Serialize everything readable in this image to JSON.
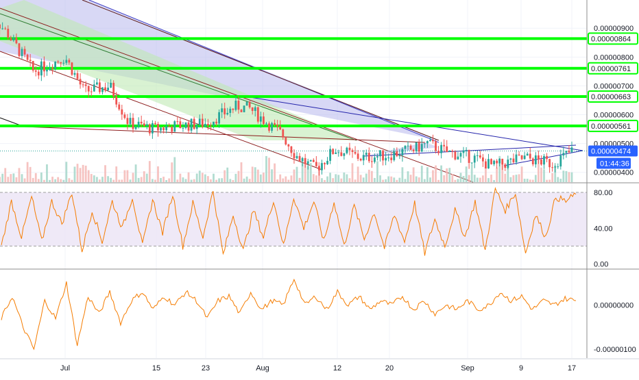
{
  "chart_data": [
    {
      "type": "candlestick",
      "panel": "price",
      "title": "",
      "xlabel": "",
      "ylabel": "",
      "ylim": [
        3.66e-06,
        9.98e-06
      ],
      "y_ticks": [
        "0.00000900",
        "0.00000800",
        "0.00000700",
        "0.00000600",
        "0.00000500",
        "0.00000400"
      ],
      "y_tick_values": [
        9e-06,
        8e-06,
        7e-06,
        6e-06,
        5e-06,
        4e-06
      ],
      "horizontal_levels": [
        {
          "value": 8.64e-06,
          "label": "0.00000864"
        },
        {
          "value": 7.61e-06,
          "label": "0.00000761"
        },
        {
          "value": 6.63e-06,
          "label": "0.00000663"
        },
        {
          "value": 5.61e-06,
          "label": "0.00000561"
        }
      ],
      "last_price": {
        "value": 4.74e-06,
        "label": "0.00000474"
      },
      "countdown": "01:44:36",
      "colors": {
        "up": "#26a69a",
        "down": "#ef5350",
        "level": "#00ff00",
        "last_price": "#2962ff"
      },
      "approx_close_path": [
        {
          "date": "Jun 19",
          "close": 9.6e-06
        },
        {
          "date": "Jun 22",
          "close": 8.8e-06
        },
        {
          "date": "Jun 26",
          "close": 7.5e-06
        },
        {
          "date": "Jul 1",
          "close": 8e-06
        },
        {
          "date": "Jul 4",
          "close": 6.8e-06
        },
        {
          "date": "Jul 8",
          "close": 7e-06
        },
        {
          "date": "Jul 11",
          "close": 5.7e-06
        },
        {
          "date": "Jul 15",
          "close": 5.5e-06
        },
        {
          "date": "Jul 18",
          "close": 5.6e-06
        },
        {
          "date": "Jul 23",
          "close": 5.7e-06
        },
        {
          "date": "Jul 28",
          "close": 6.3e-06
        },
        {
          "date": "Jul 30",
          "close": 6.2e-06
        },
        {
          "date": "Aug 4",
          "close": 5.3e-06
        },
        {
          "date": "Aug 6",
          "close": 4.6e-06
        },
        {
          "date": "Aug 9",
          "close": 4.1e-06
        },
        {
          "date": "Aug 12",
          "close": 4.8e-06
        },
        {
          "date": "Aug 16",
          "close": 4.5e-06
        },
        {
          "date": "Aug 20",
          "close": 4.6e-06
        },
        {
          "date": "Aug 24",
          "close": 4.8e-06
        },
        {
          "date": "Aug 26",
          "close": 5e-06
        },
        {
          "date": "Aug 29",
          "close": 4.7e-06
        },
        {
          "date": "Sep 2",
          "close": 4.5e-06
        },
        {
          "date": "Sep 5",
          "close": 4.2e-06
        },
        {
          "date": "Sep 8",
          "close": 4.4e-06
        },
        {
          "date": "Sep 10",
          "close": 4.5e-06
        },
        {
          "date": "Sep 14",
          "close": 4.3e-06
        },
        {
          "date": "Sep 17",
          "close": 4.74e-06
        }
      ]
    },
    {
      "type": "line",
      "panel": "rsi",
      "ylim": [
        -5,
        90
      ],
      "y_ticks": [
        "80.00",
        "40.00",
        "0.00"
      ],
      "y_tick_values": [
        80,
        40,
        0
      ],
      "band": [
        20,
        80
      ],
      "colors": {
        "line": "#f57c00",
        "band": "#d1c4e9"
      },
      "approx_values": [
        20,
        70,
        30,
        75,
        25,
        70,
        45,
        80,
        15,
        60,
        25,
        70,
        40,
        75,
        20,
        72,
        35,
        78,
        20,
        68,
        30,
        82,
        10,
        55,
        15,
        60,
        30,
        72,
        20,
        75,
        40,
        70,
        25,
        70,
        20,
        65,
        28,
        58,
        18,
        55,
        25,
        68,
        12,
        50,
        20,
        60,
        30,
        70,
        15,
        84,
        60,
        80,
        12,
        55,
        30,
        75,
        70,
        78
      ]
    },
    {
      "type": "line",
      "panel": "momentum",
      "ylim": [
        -1.2e-06,
        8e-07
      ],
      "y_ticks": [
        "0.00000000",
        "-0.00000100"
      ],
      "y_tick_values": [
        0,
        -1e-06
      ],
      "colors": {
        "line": "#f57c00"
      },
      "approx_values": [
        -0.3,
        0.2,
        -0.5,
        -1.0,
        0.1,
        -0.3,
        0.5,
        -0.9,
        0.2,
        -0.2,
        0.3,
        -0.4,
        0.1,
        0.3,
        -0.1,
        0.2,
        0.0,
        0.3,
        0.1,
        -0.3,
        0.1,
        0.2,
        -0.2,
        0.3,
        -0.1,
        0.1,
        0.0,
        0.6,
        0.0,
        0.2,
        -0.1,
        0.3,
        0.0,
        0.2,
        -0.1,
        0.1,
        0.0,
        0.2,
        -0.1,
        0.1,
        -0.2,
        0.0,
        -0.1,
        0.1,
        -0.1,
        0.0,
        0.3,
        0.1,
        0.2,
        -0.1,
        0.1,
        0.0,
        0.15,
        0.1
      ]
    }
  ],
  "x_axis": {
    "labels": [
      {
        "text": "Jul"
      },
      {
        "text": "15"
      },
      {
        "text": "23"
      },
      {
        "text": "Aug"
      },
      {
        "text": "12"
      },
      {
        "text": "20"
      },
      {
        "text": "Sep"
      },
      {
        "text": "9"
      },
      {
        "text": "17"
      }
    ]
  }
}
